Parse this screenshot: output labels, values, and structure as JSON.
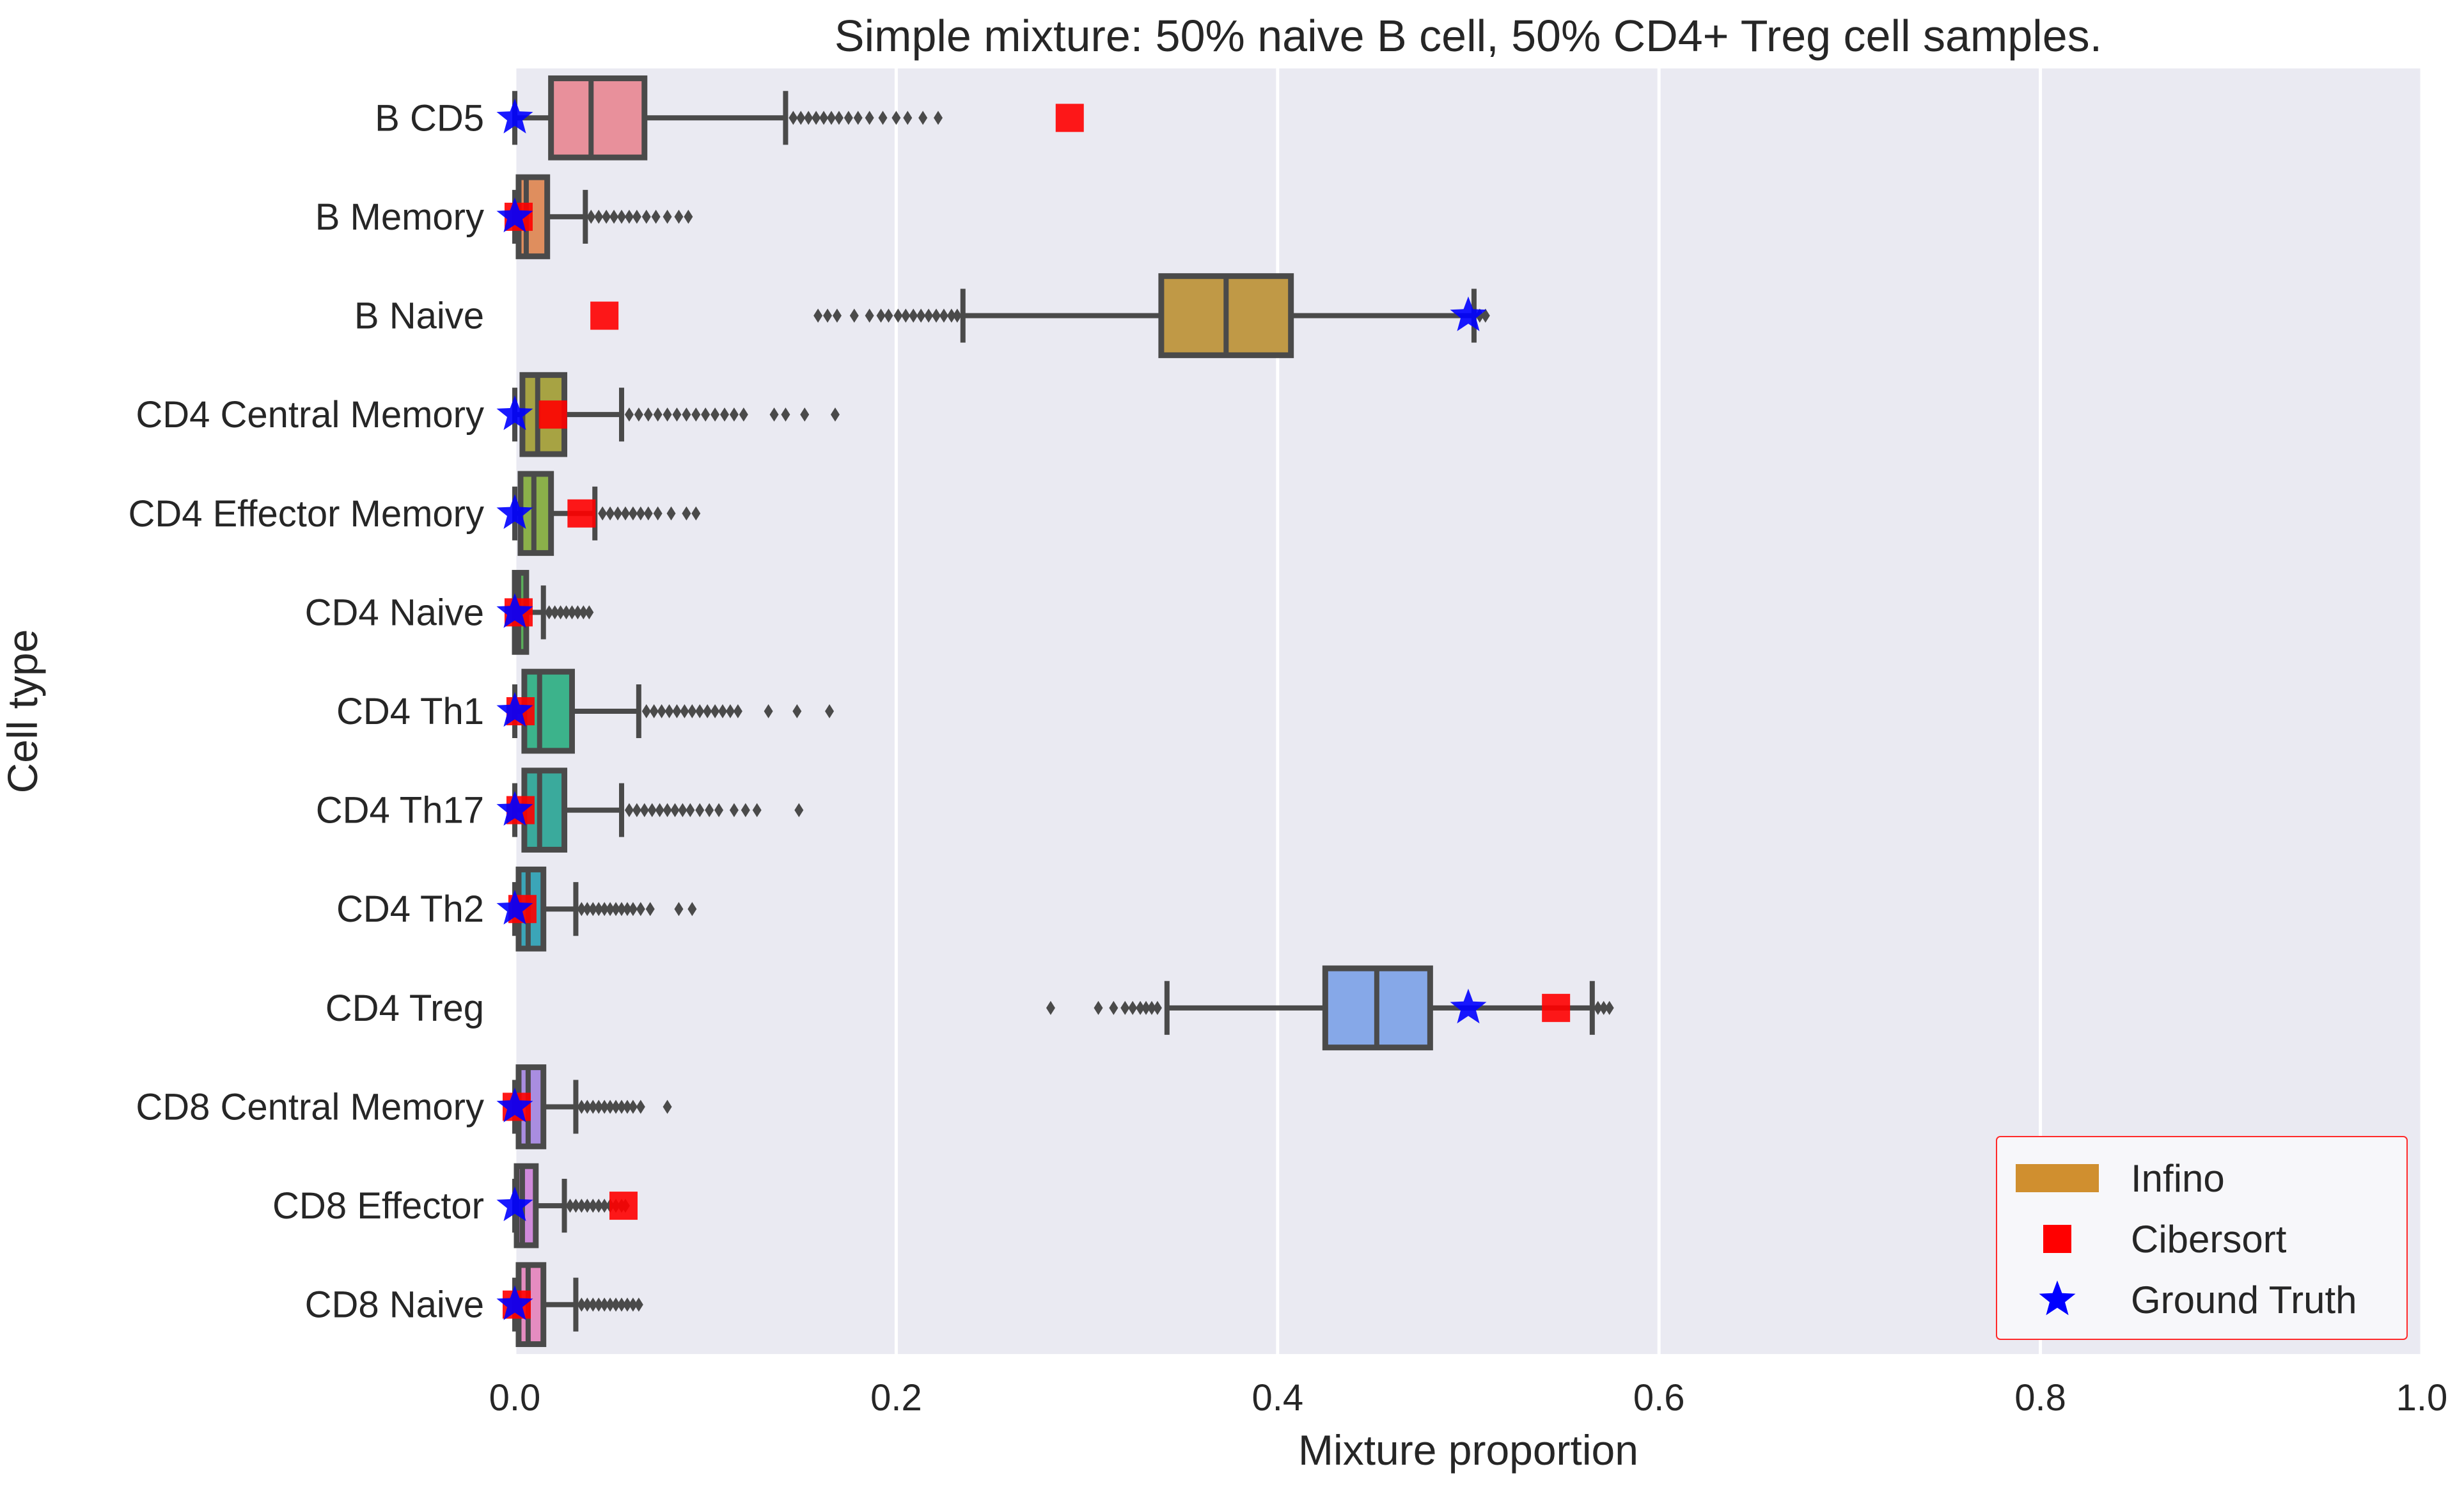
{
  "chart_data": {
    "type": "boxplot",
    "orientation": "horizontal",
    "title": "Simple mixture: 50% naive B cell, 50% CD4+ Treg cell samples.",
    "xlabel": "Mixture proportion",
    "ylabel": "Cell type",
    "xlim": [
      0.0,
      1.0
    ],
    "xticks": [
      "0.0",
      "0.2",
      "0.4",
      "0.6",
      "0.8",
      "1.0"
    ],
    "xtick_values": [
      0.0,
      0.2,
      0.4,
      0.6,
      0.8,
      1.0
    ],
    "grid": "vertical lines",
    "legend_position": "lower right",
    "legend": [
      {
        "label": "Infino",
        "marker": "patch",
        "color": "#d08f2f"
      },
      {
        "label": "Cibersort",
        "marker": "square",
        "color": "#ff0000"
      },
      {
        "label": "Ground Truth",
        "marker": "star",
        "color": "#0000ff"
      }
    ],
    "categories": [
      "B CD5",
      "B Memory",
      "B Naive",
      "CD4 Central Memory",
      "CD4 Effector Memory",
      "CD4 Naive",
      "CD4 Th1",
      "CD4 Th17",
      "CD4 Th2",
      "CD4 Treg",
      "CD8 Central Memory",
      "CD8 Effector",
      "CD8 Naive"
    ],
    "series": [
      {
        "name": "Infino",
        "boxes": [
          {
            "category": "B CD5",
            "color": "#e8909b",
            "whislo": 0.0,
            "q1": 0.019,
            "median": 0.04,
            "q3": 0.068,
            "whishi": 0.142,
            "outliers": [
              0.146,
              0.15,
              0.154,
              0.158,
              0.162,
              0.166,
              0.17,
              0.175,
              0.18,
              0.186,
              0.193,
              0.2,
              0.206,
              0.214,
              0.222
            ]
          },
          {
            "category": "B Memory",
            "color": "#df8e5e",
            "whislo": 0.0,
            "q1": 0.002,
            "median": 0.006,
            "q3": 0.017,
            "whishi": 0.037,
            "outliers": [
              0.04,
              0.044,
              0.048,
              0.052,
              0.056,
              0.06,
              0.064,
              0.069,
              0.074,
              0.08,
              0.086,
              0.091
            ]
          },
          {
            "category": "B Naive",
            "color": "#c09946",
            "whislo": 0.235,
            "q1": 0.339,
            "median": 0.373,
            "q3": 0.407,
            "whishi": 0.503,
            "outliers": [
              0.159,
              0.164,
              0.169,
              0.178,
              0.186,
              0.192,
              0.196,
              0.201,
              0.205,
              0.209,
              0.213,
              0.217,
              0.221,
              0.225,
              0.229,
              0.232,
              0.506,
              0.509
            ]
          },
          {
            "category": "CD4 Central Memory",
            "color": "#a7a343",
            "whislo": 0.0,
            "q1": 0.004,
            "median": 0.012,
            "q3": 0.026,
            "whishi": 0.056,
            "outliers": [
              0.06,
              0.065,
              0.07,
              0.075,
              0.08,
              0.085,
              0.09,
              0.095,
              0.1,
              0.105,
              0.11,
              0.115,
              0.12,
              0.136,
              0.142,
              0.152,
              0.168
            ]
          },
          {
            "category": "CD4 Effector Memory",
            "color": "#8bb04a",
            "whislo": 0.0,
            "q1": 0.003,
            "median": 0.01,
            "q3": 0.019,
            "whishi": 0.042,
            "outliers": [
              0.046,
              0.05,
              0.054,
              0.058,
              0.062,
              0.066,
              0.07,
              0.075,
              0.082,
              0.09,
              0.095
            ]
          },
          {
            "category": "CD4 Naive",
            "color": "#5aae5a",
            "whislo": 0.0,
            "q1": 0.0,
            "median": 0.002,
            "q3": 0.006,
            "whishi": 0.015,
            "outliers": [
              0.018,
              0.021,
              0.024,
              0.027,
              0.03,
              0.033,
              0.036,
              0.039
            ]
          },
          {
            "category": "CD4 Th1",
            "color": "#3cb38b",
            "whislo": 0.0,
            "q1": 0.005,
            "median": 0.013,
            "q3": 0.03,
            "whishi": 0.065,
            "outliers": [
              0.069,
              0.073,
              0.077,
              0.081,
              0.085,
              0.089,
              0.093,
              0.097,
              0.101,
              0.105,
              0.109,
              0.113,
              0.117,
              0.133,
              0.148,
              0.165
            ]
          },
          {
            "category": "CD4 Th17",
            "color": "#3aaa9c",
            "whislo": 0.0,
            "q1": 0.005,
            "median": 0.013,
            "q3": 0.026,
            "whishi": 0.056,
            "outliers": [
              0.06,
              0.064,
              0.068,
              0.072,
              0.076,
              0.08,
              0.084,
              0.088,
              0.092,
              0.097,
              0.102,
              0.107,
              0.115,
              0.121,
              0.127,
              0.149
            ]
          },
          {
            "category": "CD4 Th2",
            "color": "#3ba5b8",
            "whislo": 0.0,
            "q1": 0.002,
            "median": 0.007,
            "q3": 0.015,
            "whishi": 0.032,
            "outliers": [
              0.035,
              0.038,
              0.041,
              0.044,
              0.047,
              0.05,
              0.053,
              0.056,
              0.059,
              0.062,
              0.066,
              0.071,
              0.086,
              0.093
            ]
          },
          {
            "category": "CD4 Treg",
            "color": "#86a8e8",
            "whislo": 0.342,
            "q1": 0.425,
            "median": 0.452,
            "q3": 0.48,
            "whishi": 0.565,
            "outliers": [
              0.281,
              0.306,
              0.314,
              0.32,
              0.324,
              0.328,
              0.331,
              0.334,
              0.337,
              0.568,
              0.571,
              0.574
            ]
          },
          {
            "category": "CD8 Central Memory",
            "color": "#a98de0",
            "whislo": 0.0,
            "q1": 0.002,
            "median": 0.007,
            "q3": 0.015,
            "whishi": 0.032,
            "outliers": [
              0.035,
              0.038,
              0.041,
              0.044,
              0.047,
              0.05,
              0.053,
              0.056,
              0.059,
              0.062,
              0.066,
              0.08
            ]
          },
          {
            "category": "CD8 Effector",
            "color": "#cf89da",
            "whislo": 0.0,
            "q1": 0.001,
            "median": 0.004,
            "q3": 0.011,
            "whishi": 0.026,
            "outliers": [
              0.029,
              0.032,
              0.035,
              0.038,
              0.041,
              0.044,
              0.047,
              0.05,
              0.053,
              0.056,
              0.058
            ]
          },
          {
            "category": "CD8 Naive",
            "color": "#e58cc0",
            "whislo": 0.0,
            "q1": 0.002,
            "median": 0.007,
            "q3": 0.015,
            "whishi": 0.032,
            "outliers": [
              0.035,
              0.038,
              0.041,
              0.044,
              0.047,
              0.05,
              0.053,
              0.056,
              0.059,
              0.062,
              0.065
            ]
          }
        ]
      },
      {
        "name": "Cibersort",
        "values": [
          0.291,
          0.002,
          0.047,
          0.02,
          0.035,
          0.002,
          0.003,
          0.003,
          0.004,
          0.546,
          0.001,
          0.057,
          0.001
        ]
      },
      {
        "name": "Ground Truth",
        "values": [
          0.0,
          0.0,
          0.5,
          0.0,
          0.0,
          0.0,
          0.0,
          0.0,
          0.0,
          0.5,
          0.0,
          0.0,
          0.0
        ]
      }
    ]
  }
}
